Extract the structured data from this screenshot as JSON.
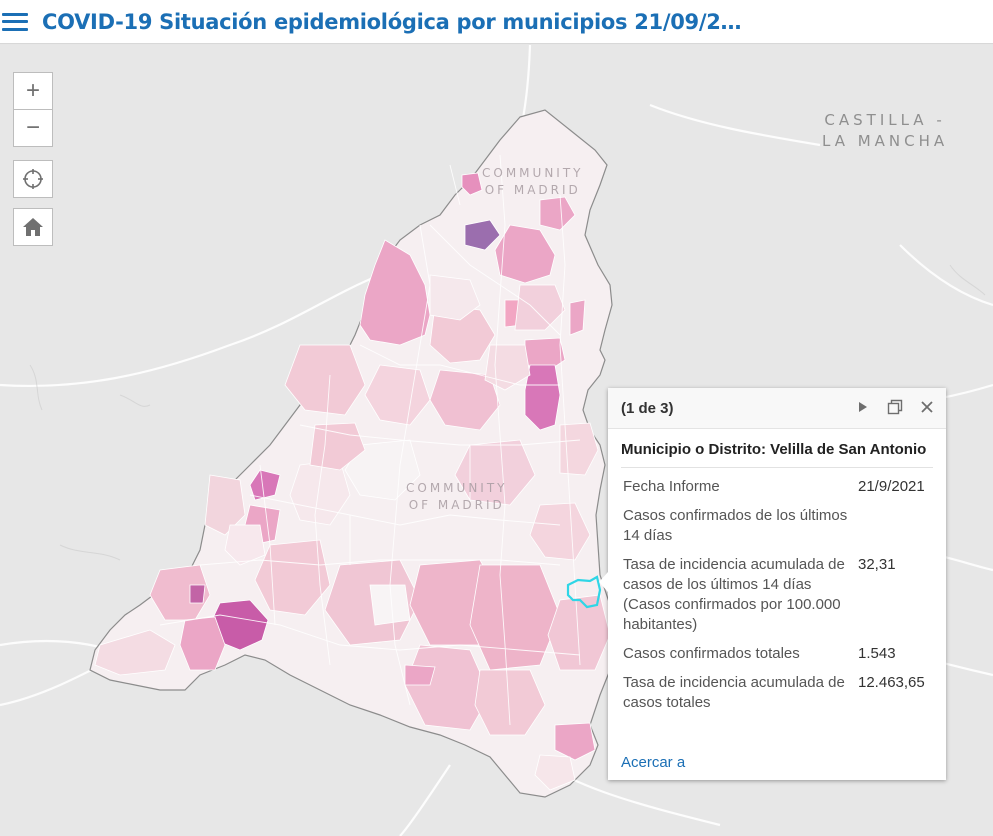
{
  "header": {
    "title": "COVID-19 Situación epidemiológica por municipios 21/09/2…"
  },
  "map": {
    "region_labels": {
      "castilla_line1": "CASTILLA -",
      "castilla_line2": "LA MANCHA",
      "community_north_line1": "COMMUNITY",
      "community_north_line2": "OF MADRID",
      "community_center_line1": "COMMUNITY",
      "community_center_line2": "OF MADRID"
    },
    "colors": {
      "background": "#e7e7e7",
      "region_fill": "#f6eff1",
      "light_pink": "#f2cad6",
      "mid_pink": "#eba6c6",
      "strong_pink": "#d877b8",
      "purple": "#9b6eae",
      "selected_outline": "#2fd6e6"
    }
  },
  "controls": {
    "zoom_in": "+",
    "zoom_out": "−",
    "locate_icon": "crosshair-icon",
    "home_icon": "home-icon"
  },
  "popup": {
    "count": "(1 de 3)",
    "title": "Municipio o Distrito: Velilla de San Antonio",
    "attributes": [
      {
        "label": "Fecha Informe",
        "value": "21/9/2021"
      },
      {
        "label": "Casos confirmados de los últimos 14 días",
        "value": ""
      },
      {
        "label": "Tasa de incidencia acumulada de casos de los últimos 14 días (Casos confirmados por 100.000 habitantes)",
        "value": "32,31"
      },
      {
        "label": "Casos confirmados totales",
        "value": "1.543"
      },
      {
        "label": "Tasa de incidencia acumulada de casos totales",
        "value": "12.463,65"
      }
    ],
    "zoom_link": "Acercar a"
  }
}
